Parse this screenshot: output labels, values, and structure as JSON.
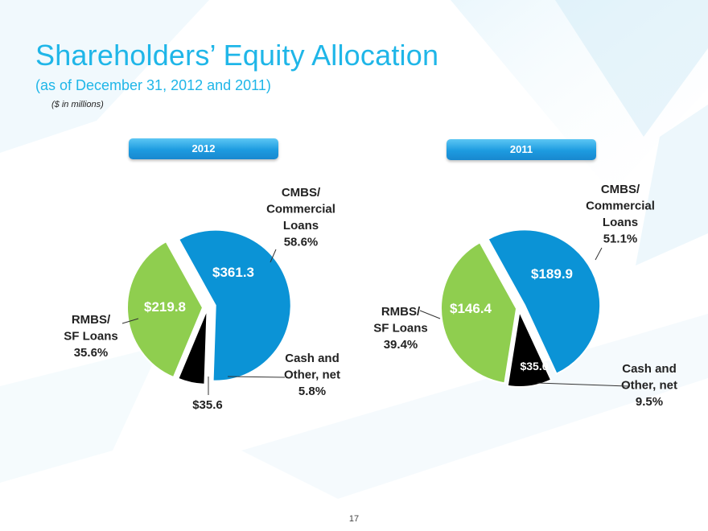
{
  "page": {
    "title": "Shareholders’ Equity Allocation",
    "subtitle": "(as of December 31, 2012 and 2011)",
    "units_note": "($ in millions)",
    "page_number": "17"
  },
  "colors": {
    "title": "#1fb6e8",
    "cmbs": "#0b93d6",
    "rmbs": "#8fce4f",
    "cash": "#000000",
    "pill": "#1d9be0"
  },
  "chart_data": [
    {
      "type": "pie",
      "title": "2012",
      "slices": [
        {
          "label": "CMBS/ Commercial Loans",
          "value": 361.3,
          "percent": 58.6,
          "value_label": "$361.3",
          "label_lines": [
            "CMBS/",
            "Commercial",
            "Loans",
            "58.6%"
          ]
        },
        {
          "label": "Cash and Other, net",
          "value": 35.6,
          "percent": 5.8,
          "value_label": "$35.6",
          "label_lines": [
            "Cash and",
            "Other, net",
            "5.8%"
          ]
        },
        {
          "label": "RMBS/ SF Loans",
          "value": 219.8,
          "percent": 35.6,
          "value_label": "$219.8",
          "label_lines": [
            "RMBS/",
            "SF Loans",
            "35.6%"
          ]
        }
      ]
    },
    {
      "type": "pie",
      "title": "2011",
      "slices": [
        {
          "label": "CMBS/ Commercial Loans",
          "value": 189.9,
          "percent": 51.1,
          "value_label": "$189.9",
          "label_lines": [
            "CMBS/",
            "Commercial",
            "Loans",
            "51.1%"
          ]
        },
        {
          "label": "Cash and Other, net",
          "value": 35.0,
          "percent": 9.5,
          "value_label": "$35.0",
          "label_lines": [
            "Cash and",
            "Other, net",
            "9.5%"
          ]
        },
        {
          "label": "RMBS/ SF Loans",
          "value": 146.4,
          "percent": 39.4,
          "value_label": "$146.4",
          "label_lines": [
            "RMBS/",
            "SF Loans",
            "39.4%"
          ]
        }
      ]
    }
  ]
}
